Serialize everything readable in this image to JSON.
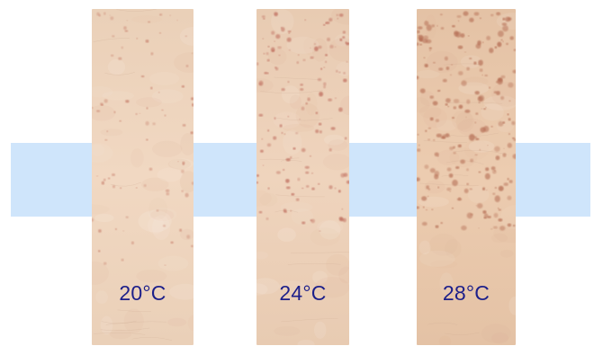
{
  "panels": [
    {
      "label": "20°C",
      "skin_base": "#f1d8c2",
      "skin_edge": "#ead0b8",
      "spot_color": "#c9836f",
      "spot_density": 0.25,
      "spot_zone": "upper"
    },
    {
      "label": "24°C",
      "skin_base": "#efd4bd",
      "skin_edge": "#e8cbb2",
      "spot_color": "#c07060",
      "spot_density": 0.55,
      "spot_zone": "upper-middle"
    },
    {
      "label": "28°C",
      "skin_base": "#ecccb0",
      "skin_edge": "#e4c2a5",
      "spot_color": "#b56e55",
      "spot_density": 1.0,
      "spot_zone": "upper-middle"
    }
  ],
  "colors": {
    "band": "#cfe5fb",
    "label_text": "#1c1f8a"
  }
}
